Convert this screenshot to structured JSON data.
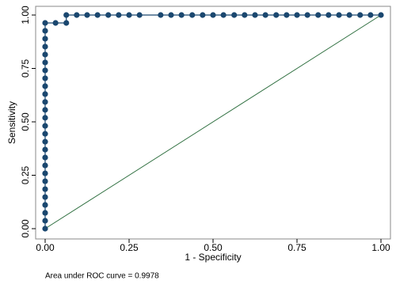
{
  "chart_data": {
    "type": "scatter",
    "xlabel": "1 - Specificity",
    "ylabel": "Sensitivity",
    "annotation": "Area under ROC curve = 0.9978",
    "xlim": [
      0,
      1
    ],
    "ylim": [
      0,
      1
    ],
    "xticks": [
      {
        "value": 0,
        "label": "0.00"
      },
      {
        "value": 0.25,
        "label": "0.25"
      },
      {
        "value": 0.5,
        "label": "0.50"
      },
      {
        "value": 0.75,
        "label": "0.75"
      },
      {
        "value": 1,
        "label": "1.00"
      }
    ],
    "yticks": [
      {
        "value": 0,
        "label": "0.00"
      },
      {
        "value": 0.25,
        "label": "0.25"
      },
      {
        "value": 0.5,
        "label": "0.50"
      },
      {
        "value": 0.75,
        "label": "0.75"
      },
      {
        "value": 1,
        "label": "1.00"
      }
    ],
    "series": [
      {
        "color": "#1a476f",
        "x": [
          0,
          0,
          0,
          0,
          0,
          0,
          0,
          0,
          0,
          0,
          0,
          0,
          0,
          0,
          0,
          0,
          0,
          0,
          0,
          0,
          0,
          0,
          0,
          0,
          0,
          0,
          0,
          0.031,
          0.063,
          0.063,
          0.094,
          0.125,
          0.156,
          0.188,
          0.219,
          0.25,
          0.281,
          0.344,
          0.375,
          0.406,
          0.438,
          0.469,
          0.5,
          0.531,
          0.563,
          0.594,
          0.625,
          0.656,
          0.688,
          0.719,
          0.75,
          0.781,
          0.813,
          0.844,
          0.875,
          0.906,
          0.938,
          0.969,
          1
        ],
        "values": [
          0,
          0.037,
          0.074,
          0.111,
          0.148,
          0.185,
          0.222,
          0.259,
          0.296,
          0.333,
          0.37,
          0.407,
          0.444,
          0.481,
          0.519,
          0.556,
          0.593,
          0.63,
          0.667,
          0.704,
          0.741,
          0.778,
          0.815,
          0.852,
          0.889,
          0.926,
          0.963,
          0.963,
          0.963,
          1,
          1,
          1,
          1,
          1,
          1,
          1,
          1,
          1,
          1,
          1,
          1,
          1,
          1,
          1,
          1,
          1,
          1,
          1,
          1,
          1,
          1,
          1,
          1,
          1,
          1,
          1,
          1,
          1,
          1
        ]
      },
      {
        "color": "#2d6e3e",
        "x": [
          0,
          1
        ],
        "values": [
          0,
          1
        ]
      }
    ]
  }
}
